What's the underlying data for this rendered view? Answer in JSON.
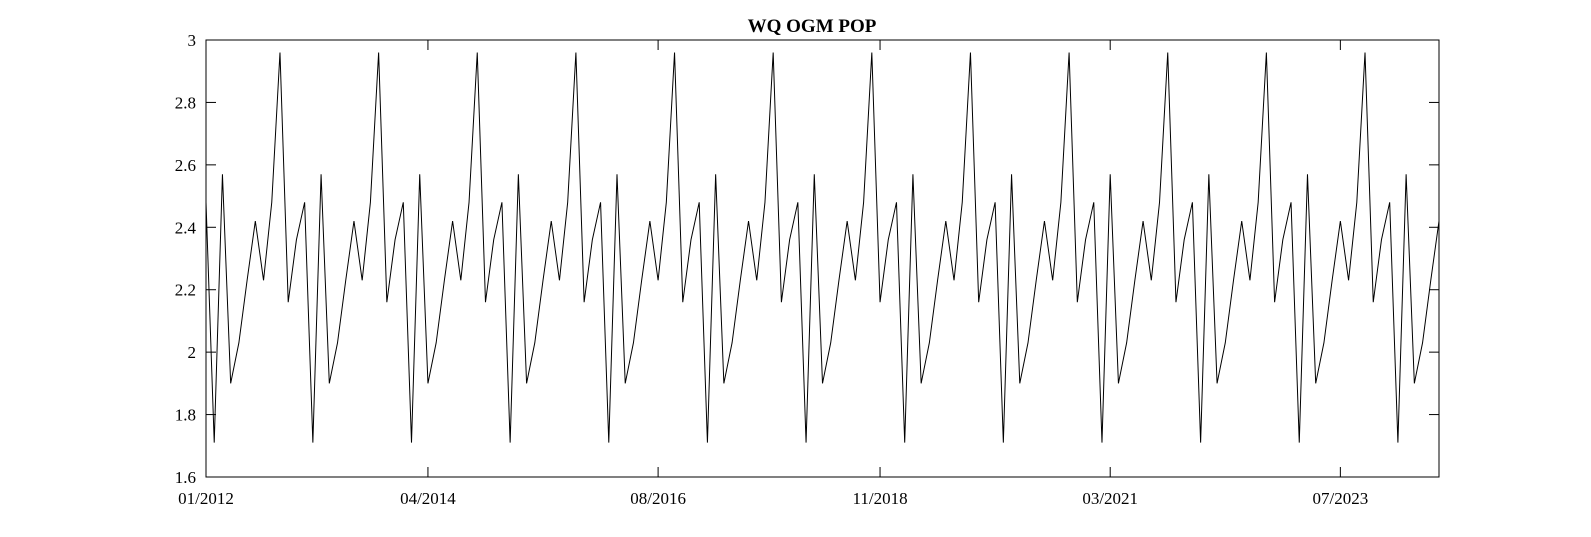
{
  "chart_data": {
    "type": "line",
    "title": "WQ OGM POP",
    "xlabel": "",
    "ylabel": "",
    "x_start": "2012-01",
    "x_end": "2023-07",
    "x_step": "month",
    "x_tick_labels": [
      "01/2012",
      "04/2014",
      "08/2016",
      "11/2018",
      "03/2021",
      "07/2023"
    ],
    "x_tick_month_offsets": [
      0,
      27,
      55,
      82,
      110,
      138
    ],
    "ylim": [
      1.6,
      3.0
    ],
    "y_tick_values": [
      1.6,
      1.8,
      2.0,
      2.2,
      2.4,
      2.6,
      2.8,
      3.0
    ],
    "y_tick_labels": [
      "1.6",
      "1.8",
      "2",
      "2.2",
      "2.4",
      "2.6",
      "2.8",
      "3"
    ],
    "grid": false,
    "legend": "none",
    "line_color": "#000000",
    "series": [
      {
        "values": [
          2.48,
          1.71,
          2.57,
          1.9,
          2.03,
          2.23,
          2.42,
          2.23,
          2.48,
          2.96,
          2.16,
          2.36,
          2.48,
          1.71,
          2.57,
          1.9,
          2.03,
          2.23,
          2.42,
          2.23,
          2.48,
          2.96,
          2.16,
          2.36,
          2.48,
          1.71,
          2.57,
          1.9,
          2.03,
          2.23,
          2.42,
          2.23,
          2.48,
          2.96,
          2.16,
          2.36,
          2.48,
          1.71,
          2.57,
          1.9,
          2.03,
          2.23,
          2.42,
          2.23,
          2.48,
          2.96,
          2.16,
          2.36,
          2.48,
          1.71,
          2.57,
          1.9,
          2.03,
          2.23,
          2.42,
          2.23,
          2.48,
          2.96,
          2.16,
          2.36,
          2.48,
          1.71,
          2.57,
          1.9,
          2.03,
          2.23,
          2.42,
          2.23,
          2.48,
          2.96,
          2.16,
          2.36,
          2.48,
          1.71,
          2.57,
          1.9,
          2.03,
          2.23,
          2.42,
          2.23,
          2.48,
          2.96,
          2.16,
          2.36,
          2.48,
          1.71,
          2.57,
          1.9,
          2.03,
          2.23,
          2.42,
          2.23,
          2.48,
          2.96,
          2.16,
          2.36,
          2.48,
          1.71,
          2.57,
          1.9,
          2.03,
          2.23,
          2.42,
          2.23,
          2.48,
          2.96,
          2.16,
          2.36,
          2.48,
          1.71,
          2.57,
          1.9,
          2.03,
          2.23,
          2.42,
          2.23,
          2.48,
          2.96,
          2.16,
          2.36,
          2.48,
          1.71,
          2.57,
          1.9,
          2.03,
          2.23,
          2.42,
          2.23,
          2.48,
          2.96,
          2.16,
          2.36,
          2.48,
          1.71,
          2.57,
          1.9,
          2.03,
          2.23,
          2.42,
          2.23,
          2.48,
          2.96,
          2.16,
          2.36,
          2.48,
          1.71,
          2.57,
          1.9,
          2.03,
          2.23,
          2.42
        ]
      }
    ]
  }
}
